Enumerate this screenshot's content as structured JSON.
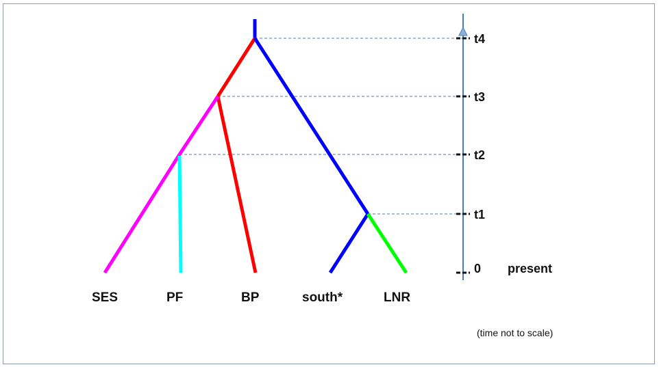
{
  "tips": [
    {
      "id": "ses",
      "label": "SES"
    },
    {
      "id": "pf",
      "label": "PF"
    },
    {
      "id": "bp",
      "label": "BP"
    },
    {
      "id": "south",
      "label": "south*"
    },
    {
      "id": "lnr",
      "label": "LNR"
    }
  ],
  "time_axis": {
    "ticks": [
      "t4",
      "t3",
      "t2",
      "t1",
      "0"
    ],
    "present_label": "present",
    "note": "(time not to scale)"
  },
  "colors": {
    "root": "#0000ff",
    "bp_lineage": "#ff0000",
    "ses_lineage": "#ff00ff",
    "pf_lineage": "#00ffff",
    "south_lineage": "#0000ff",
    "lnr_lineage": "#00ff00",
    "axis": "#4a7eb8",
    "guide": "#4a7eb8",
    "tick": "#111111"
  }
}
